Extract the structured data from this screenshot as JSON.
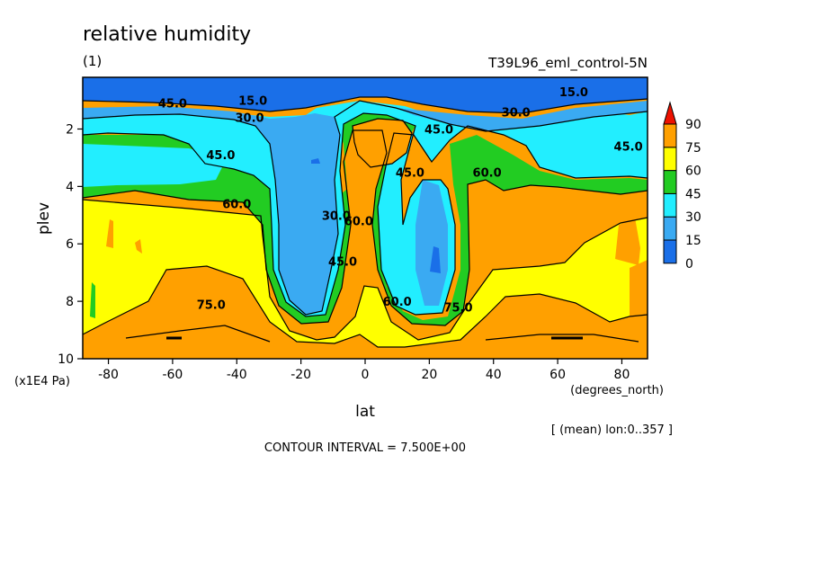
{
  "chart_data": {
    "type": "heatmap",
    "title": "relative humidity",
    "panel_label": "(1)",
    "run_label": "T39L96_eml_control-5N",
    "xlabel": "lat",
    "xunit": "(degrees_north)",
    "ylabel": "plev",
    "yunit": "(x1E4 Pa)",
    "xlim": [
      -88,
      88
    ],
    "ylim": [
      10,
      0.2
    ],
    "xticks": [
      -80,
      -60,
      -40,
      -20,
      0,
      20,
      40,
      60,
      80
    ],
    "yticks": [
      2,
      4,
      6,
      8,
      10
    ],
    "mean_note": "[ (mean) lon:0..357 ]",
    "contour_note": "CONTOUR INTERVAL = 7.500E+00",
    "colorbar": {
      "levels": [
        "0",
        "15",
        "30",
        "45",
        "60",
        "75",
        "90"
      ],
      "colors": [
        "#1a6fe8",
        "#3aaaf2",
        "#22eeff",
        "#22cc22",
        "#ffff00",
        "#ffa000",
        "#ee1100"
      ]
    },
    "contour_labels": [
      {
        "text": "15.0",
        "lat": -35,
        "plev": 1.0
      },
      {
        "text": "30.0",
        "lat": -36,
        "plev": 1.6
      },
      {
        "text": "45.0",
        "lat": -60,
        "plev": 1.1
      },
      {
        "text": "45.0",
        "lat": -45,
        "plev": 2.9
      },
      {
        "text": "60.0",
        "lat": -40,
        "plev": 4.6
      },
      {
        "text": "75.0",
        "lat": -48,
        "plev": 8.1
      },
      {
        "text": "30.0",
        "lat": -9,
        "plev": 5.0
      },
      {
        "text": "60.0",
        "lat": -2,
        "plev": 5.2
      },
      {
        "text": "45.0",
        "lat": -7,
        "plev": 6.6
      },
      {
        "text": "45.0",
        "lat": 14,
        "plev": 3.5
      },
      {
        "text": "45.0",
        "lat": 23,
        "plev": 2.0
      },
      {
        "text": "60.0",
        "lat": 10,
        "plev": 8.0
      },
      {
        "text": "75.0",
        "lat": 29,
        "plev": 8.2
      },
      {
        "text": "60.0",
        "lat": 38,
        "plev": 3.5
      },
      {
        "text": "30.0",
        "lat": 47,
        "plev": 1.4
      },
      {
        "text": "15.0",
        "lat": 65,
        "plev": 0.7
      },
      {
        "text": "45.0",
        "lat": 82,
        "plev": 2.6
      }
    ]
  }
}
